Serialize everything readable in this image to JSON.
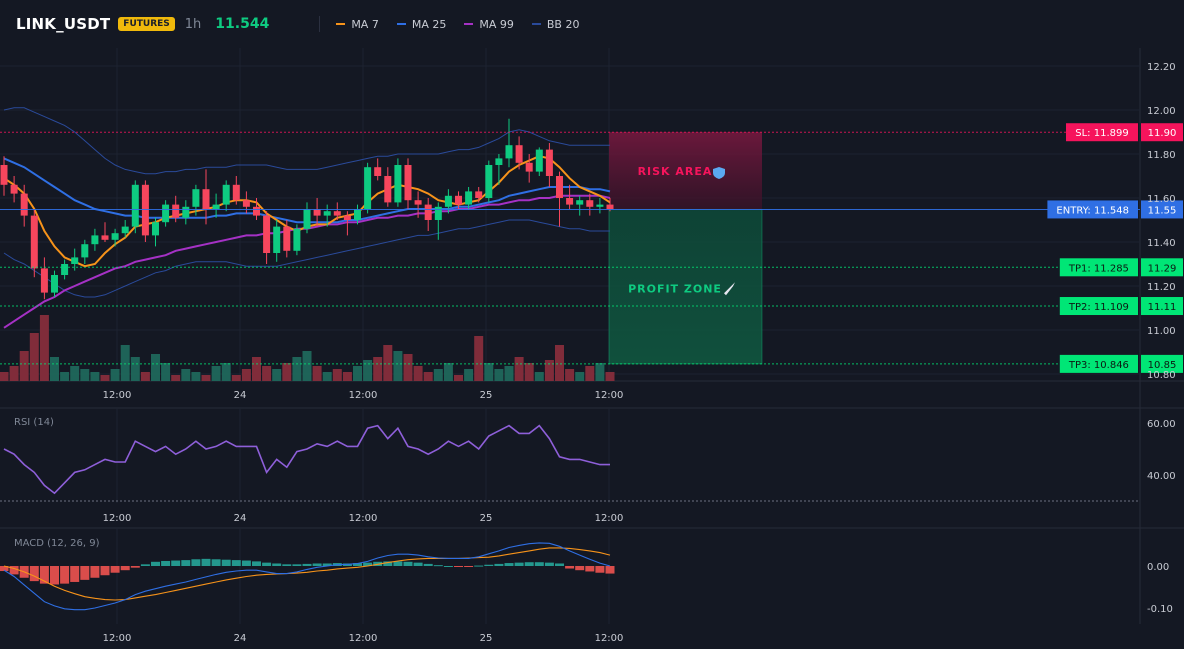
{
  "header": {
    "symbol": "LINK_USDT",
    "badge": "FUTURES",
    "timeframe": "1h",
    "last_price": "11.544",
    "indicators": [
      {
        "label": "MA 7",
        "color": "#f7931a"
      },
      {
        "label": "MA 25",
        "color": "#2f6fe4"
      },
      {
        "label": "MA 99",
        "color": "#a531c5"
      },
      {
        "label": "BB 20",
        "color": "#2a4a9a"
      }
    ]
  },
  "chart_data": [
    {
      "type": "candlestick",
      "title": "",
      "x_ticks": [
        "12:00",
        "24",
        "12:00",
        "25",
        "12:00"
      ],
      "y_ticks": [
        12.2,
        12.0,
        11.8,
        11.6,
        11.4,
        11.2,
        11.0,
        10.8
      ],
      "ylim": [
        10.78,
        12.26
      ],
      "candles": [
        [
          11.75,
          11.79,
          11.61,
          11.66
        ],
        [
          11.66,
          11.7,
          11.58,
          11.62
        ],
        [
          11.62,
          11.66,
          11.47,
          11.52
        ],
        [
          11.52,
          11.55,
          11.24,
          11.28
        ],
        [
          11.28,
          11.33,
          11.14,
          11.17
        ],
        [
          11.17,
          11.27,
          11.15,
          11.25
        ],
        [
          11.25,
          11.32,
          11.23,
          11.3
        ],
        [
          11.3,
          11.37,
          11.27,
          11.33
        ],
        [
          11.33,
          11.41,
          11.3,
          11.39
        ],
        [
          11.39,
          11.46,
          11.36,
          11.43
        ],
        [
          11.43,
          11.49,
          11.4,
          11.41
        ],
        [
          11.41,
          11.46,
          11.38,
          11.44
        ],
        [
          11.44,
          11.5,
          11.42,
          11.47
        ],
        [
          11.47,
          11.68,
          11.44,
          11.66
        ],
        [
          11.66,
          11.68,
          11.4,
          11.43
        ],
        [
          11.43,
          11.51,
          11.38,
          11.49
        ],
        [
          11.49,
          11.59,
          11.47,
          11.57
        ],
        [
          11.57,
          11.61,
          11.49,
          11.51
        ],
        [
          11.51,
          11.59,
          11.48,
          11.56
        ],
        [
          11.56,
          11.66,
          11.52,
          11.64
        ],
        [
          11.64,
          11.73,
          11.48,
          11.55
        ],
        [
          11.55,
          11.62,
          11.51,
          11.57
        ],
        [
          11.57,
          11.68,
          11.54,
          11.66
        ],
        [
          11.66,
          11.7,
          11.57,
          11.59
        ],
        [
          11.59,
          11.63,
          11.53,
          11.56
        ],
        [
          11.56,
          11.6,
          11.5,
          11.52
        ],
        [
          11.52,
          11.54,
          11.3,
          11.35
        ],
        [
          11.35,
          11.5,
          11.31,
          11.47
        ],
        [
          11.47,
          11.5,
          11.33,
          11.36
        ],
        [
          11.36,
          11.48,
          11.34,
          11.46
        ],
        [
          11.46,
          11.58,
          11.44,
          11.55
        ],
        [
          11.55,
          11.6,
          11.47,
          11.52
        ],
        [
          11.52,
          11.57,
          11.47,
          11.54
        ],
        [
          11.54,
          11.58,
          11.5,
          11.52
        ],
        [
          11.52,
          11.54,
          11.43,
          11.5
        ],
        [
          11.5,
          11.57,
          11.48,
          11.55
        ],
        [
          11.55,
          11.76,
          11.53,
          11.74
        ],
        [
          11.74,
          11.78,
          11.68,
          11.7
        ],
        [
          11.7,
          11.74,
          11.56,
          11.58
        ],
        [
          11.58,
          11.78,
          11.56,
          11.75
        ],
        [
          11.75,
          11.78,
          11.55,
          11.59
        ],
        [
          11.59,
          11.63,
          11.51,
          11.57
        ],
        [
          11.57,
          11.6,
          11.45,
          11.5
        ],
        [
          11.5,
          11.58,
          11.41,
          11.56
        ],
        [
          11.56,
          11.64,
          11.53,
          11.61
        ],
        [
          11.61,
          11.63,
          11.55,
          11.57
        ],
        [
          11.57,
          11.65,
          11.55,
          11.63
        ],
        [
          11.63,
          11.65,
          11.58,
          11.6
        ],
        [
          11.6,
          11.77,
          11.58,
          11.75
        ],
        [
          11.75,
          11.8,
          11.66,
          11.78
        ],
        [
          11.78,
          11.96,
          11.74,
          11.84
        ],
        [
          11.84,
          11.88,
          11.73,
          11.76
        ],
        [
          11.76,
          11.8,
          11.67,
          11.72
        ],
        [
          11.72,
          11.83,
          11.7,
          11.82
        ],
        [
          11.82,
          11.85,
          11.65,
          11.7
        ],
        [
          11.7,
          11.72,
          11.47,
          11.6
        ],
        [
          11.6,
          11.66,
          11.55,
          11.57
        ],
        [
          11.57,
          11.61,
          11.52,
          11.59
        ],
        [
          11.59,
          11.62,
          11.52,
          11.56
        ],
        [
          11.56,
          11.6,
          11.53,
          11.57
        ],
        [
          11.57,
          11.6,
          11.54,
          11.55
        ]
      ],
      "volume_levels": [
        3,
        5,
        10,
        16,
        22,
        8,
        3,
        5,
        4,
        3,
        2,
        4,
        12,
        8,
        3,
        9,
        6,
        2,
        4,
        3,
        2,
        5,
        6,
        2,
        4,
        8,
        5,
        4,
        6,
        8,
        10,
        5,
        3,
        4,
        3,
        5,
        7,
        8,
        12,
        10,
        9,
        5,
        3,
        4,
        6,
        2,
        4,
        15,
        6,
        4,
        5,
        8,
        6,
        3,
        7,
        12,
        4,
        3,
        5,
        6,
        3
      ],
      "ma7": [
        11.69,
        11.66,
        11.62,
        11.55,
        11.45,
        11.38,
        11.33,
        11.31,
        11.29,
        11.3,
        11.35,
        11.39,
        11.42,
        11.47,
        11.48,
        11.49,
        11.51,
        11.52,
        11.53,
        11.54,
        11.55,
        11.56,
        11.58,
        11.59,
        11.59,
        11.58,
        11.53,
        11.5,
        11.47,
        11.45,
        11.47,
        11.48,
        11.48,
        11.51,
        11.52,
        11.53,
        11.58,
        11.62,
        11.64,
        11.66,
        11.65,
        11.64,
        11.62,
        11.59,
        11.58,
        11.57,
        11.58,
        11.59,
        11.63,
        11.67,
        11.72,
        11.75,
        11.77,
        11.79,
        11.78,
        11.74,
        11.69,
        11.65,
        11.63,
        11.61,
        11.58
      ],
      "ma25": [
        11.78,
        11.76,
        11.74,
        11.71,
        11.68,
        11.65,
        11.62,
        11.59,
        11.57,
        11.55,
        11.54,
        11.53,
        11.52,
        11.52,
        11.51,
        11.51,
        11.51,
        11.51,
        11.51,
        11.51,
        11.51,
        11.52,
        11.52,
        11.53,
        11.53,
        11.53,
        11.52,
        11.51,
        11.5,
        11.49,
        11.49,
        11.49,
        11.49,
        11.49,
        11.5,
        11.5,
        11.51,
        11.52,
        11.53,
        11.54,
        11.55,
        11.55,
        11.55,
        11.55,
        11.55,
        11.56,
        11.56,
        11.57,
        11.58,
        11.59,
        11.61,
        11.62,
        11.63,
        11.64,
        11.65,
        11.65,
        11.65,
        11.65,
        11.64,
        11.64,
        11.63
      ],
      "ma99": [
        11.01,
        11.04,
        11.07,
        11.1,
        11.13,
        11.15,
        11.18,
        11.2,
        11.22,
        11.24,
        11.26,
        11.28,
        11.29,
        11.31,
        11.32,
        11.33,
        11.34,
        11.36,
        11.37,
        11.38,
        11.39,
        11.4,
        11.41,
        11.42,
        11.43,
        11.43,
        11.44,
        11.44,
        11.45,
        11.46,
        11.46,
        11.47,
        11.48,
        11.48,
        11.49,
        11.49,
        11.5,
        11.51,
        11.51,
        11.52,
        11.52,
        11.53,
        11.53,
        11.54,
        11.54,
        11.55,
        11.55,
        11.56,
        11.57,
        11.57,
        11.58,
        11.59,
        11.59,
        11.6,
        11.6,
        11.61,
        11.61,
        11.61,
        11.61,
        11.61,
        11.6
      ],
      "bb_upper": [
        12.0,
        12.01,
        12.01,
        11.99,
        11.97,
        11.95,
        11.93,
        11.9,
        11.86,
        11.82,
        11.78,
        11.75,
        11.73,
        11.72,
        11.71,
        11.71,
        11.72,
        11.72,
        11.73,
        11.73,
        11.74,
        11.74,
        11.74,
        11.75,
        11.75,
        11.75,
        11.75,
        11.74,
        11.73,
        11.73,
        11.73,
        11.73,
        11.74,
        11.75,
        11.76,
        11.77,
        11.78,
        11.79,
        11.79,
        11.8,
        11.8,
        11.8,
        11.8,
        11.8,
        11.81,
        11.82,
        11.82,
        11.83,
        11.85,
        11.87,
        11.9,
        11.91,
        11.9,
        11.88,
        11.86,
        11.85,
        11.84,
        11.84,
        11.84,
        11.84,
        11.84
      ],
      "bb_lower": [
        11.35,
        11.32,
        11.3,
        11.27,
        11.24,
        11.21,
        11.18,
        11.16,
        11.15,
        11.15,
        11.16,
        11.18,
        11.2,
        11.22,
        11.24,
        11.26,
        11.27,
        11.29,
        11.3,
        11.31,
        11.31,
        11.31,
        11.31,
        11.3,
        11.29,
        11.29,
        11.29,
        11.29,
        11.3,
        11.31,
        11.32,
        11.33,
        11.34,
        11.35,
        11.36,
        11.37,
        11.38,
        11.39,
        11.4,
        11.41,
        11.42,
        11.43,
        11.43,
        11.44,
        11.45,
        11.46,
        11.46,
        11.47,
        11.48,
        11.49,
        11.5,
        11.5,
        11.5,
        11.49,
        11.48,
        11.47,
        11.46,
        11.46,
        11.45,
        11.45,
        11.45
      ],
      "trade_levels": [
        {
          "label": "SL: 11.899",
          "axis_label": "11.90",
          "value": 11.899,
          "color": "#f6145c"
        },
        {
          "label": "ENTRY: 11.548",
          "axis_label": "11.55",
          "value": 11.548,
          "color": "#2f6fe4"
        },
        {
          "label": "TP1: 11.285",
          "axis_label": "11.29",
          "value": 11.285,
          "color": "#00e676"
        },
        {
          "label": "TP2: 11.109",
          "axis_label": "11.11",
          "value": 11.109,
          "color": "#00e676"
        },
        {
          "label": "TP3: 10.846",
          "axis_label": "10.85",
          "value": 10.846,
          "color": "#00e676"
        }
      ],
      "zones": [
        {
          "label": "RISK AREA",
          "icon": "shield-icon",
          "from": 11.548,
          "to": 11.899,
          "color": "#f6145c"
        },
        {
          "label": "PROFIT ZONE",
          "icon": "rocket-icon",
          "from": 10.846,
          "to": 11.548,
          "color": "#0ecb81"
        }
      ]
    },
    {
      "type": "line",
      "title": "RSI (14)",
      "x_ticks": [
        "12:00",
        "24",
        "12:00",
        "25",
        "12:00"
      ],
      "y_ticks": [
        60.0,
        40.0
      ],
      "ylim": [
        28,
        66
      ],
      "reference_line": 30,
      "values": [
        50,
        48,
        44,
        41,
        36,
        33,
        37,
        41,
        42,
        44,
        46,
        45,
        45,
        53,
        51,
        49,
        51,
        48,
        50,
        53,
        50,
        51,
        53,
        51,
        51,
        51,
        41,
        46,
        43,
        49,
        50,
        52,
        51,
        53,
        51,
        51,
        58,
        59,
        54,
        58,
        51,
        50,
        48,
        50,
        53,
        51,
        53,
        50,
        55,
        57,
        59,
        56,
        56,
        59,
        54,
        47,
        46,
        46,
        45,
        44,
        44
      ]
    },
    {
      "type": "bar",
      "title": "MACD (12, 26, 9)",
      "x_ticks": [
        "12:00",
        "24",
        "12:00",
        "25",
        "12:00"
      ],
      "y_ticks": [
        0.0,
        -0.1
      ],
      "ylim": [
        -0.135,
        0.075
      ],
      "histogram": [
        -0.012,
        -0.02,
        -0.028,
        -0.036,
        -0.042,
        -0.044,
        -0.042,
        -0.038,
        -0.033,
        -0.028,
        -0.022,
        -0.016,
        -0.01,
        -0.004,
        0.004,
        0.01,
        0.012,
        0.013,
        0.014,
        0.016,
        0.017,
        0.016,
        0.015,
        0.014,
        0.013,
        0.011,
        0.008,
        0.006,
        0.004,
        0.004,
        0.005,
        0.006,
        0.006,
        0.007,
        0.006,
        0.007,
        0.008,
        0.01,
        0.011,
        0.011,
        0.01,
        0.008,
        0.005,
        0.002,
        0.0,
        -0.002,
        -0.002,
        0.001,
        0.003,
        0.005,
        0.007,
        0.008,
        0.009,
        0.009,
        0.008,
        0.006,
        -0.006,
        -0.01,
        -0.013,
        -0.016,
        -0.018
      ],
      "macd_line": [
        -0.01,
        -0.025,
        -0.045,
        -0.065,
        -0.085,
        -0.095,
        -0.102,
        -0.104,
        -0.104,
        -0.1,
        -0.094,
        -0.088,
        -0.08,
        -0.068,
        -0.06,
        -0.054,
        -0.048,
        -0.043,
        -0.038,
        -0.032,
        -0.026,
        -0.02,
        -0.015,
        -0.012,
        -0.01,
        -0.01,
        -0.014,
        -0.018,
        -0.018,
        -0.014,
        -0.008,
        -0.003,
        0.0,
        0.003,
        0.004,
        0.006,
        0.011,
        0.019,
        0.025,
        0.028,
        0.028,
        0.026,
        0.022,
        0.019,
        0.018,
        0.018,
        0.018,
        0.022,
        0.029,
        0.036,
        0.044,
        0.049,
        0.053,
        0.055,
        0.054,
        0.047,
        0.036,
        0.026,
        0.016,
        0.007,
        0.0
      ],
      "signal_line": [
        0.0,
        -0.006,
        -0.014,
        -0.024,
        -0.036,
        -0.048,
        -0.058,
        -0.066,
        -0.073,
        -0.077,
        -0.08,
        -0.081,
        -0.08,
        -0.076,
        -0.072,
        -0.068,
        -0.063,
        -0.058,
        -0.053,
        -0.048,
        -0.043,
        -0.038,
        -0.033,
        -0.029,
        -0.025,
        -0.022,
        -0.02,
        -0.019,
        -0.018,
        -0.017,
        -0.015,
        -0.012,
        -0.01,
        -0.007,
        -0.005,
        -0.003,
        0.0,
        0.004,
        0.008,
        0.012,
        0.015,
        0.017,
        0.018,
        0.018,
        0.018,
        0.018,
        0.019,
        0.02,
        0.021,
        0.024,
        0.028,
        0.032,
        0.036,
        0.04,
        0.043,
        0.043,
        0.042,
        0.039,
        0.036,
        0.032,
        0.026
      ],
      "colors": {
        "macd": "#2f6fe4",
        "signal": "#f7931a",
        "hist_pos": "#26a69a",
        "hist_neg": "#ef5350"
      }
    }
  ]
}
